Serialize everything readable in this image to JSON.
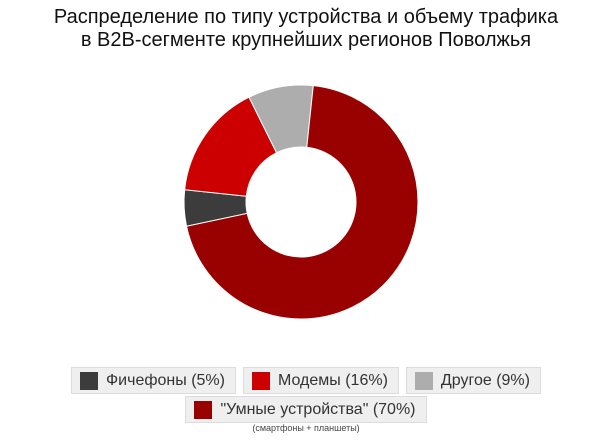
{
  "title_lines": [
    "Распределение по типу устройства и объему трафика",
    "в B2B-сегменте крупнейших регионов Поволжья"
  ],
  "chart_data": {
    "type": "pie",
    "title": "Распределение по типу устройства и объему трафика в B2B-сегменте крупнейших регионов Поволжья",
    "categories": [
      "Фичефоны",
      "Модемы",
      "Другое",
      "\"Умные устройства\""
    ],
    "values": [
      5,
      16,
      9,
      70
    ],
    "unit": "%",
    "colors": [
      "#3c3c3c",
      "#cc0000",
      "#adadad",
      "#990000"
    ],
    "legend_position": "bottom",
    "donut": true
  },
  "legend": {
    "items": [
      {
        "label": "Фичефоны (5%)",
        "color": "#3c3c3c"
      },
      {
        "label": "Модемы (16%)",
        "color": "#cc0000"
      },
      {
        "label": "Другое (9%)",
        "color": "#adadad"
      },
      {
        "label": "\"Умные устройства\" (70%)",
        "color": "#990000"
      }
    ],
    "note": "(смартфоны + планшеты)"
  }
}
